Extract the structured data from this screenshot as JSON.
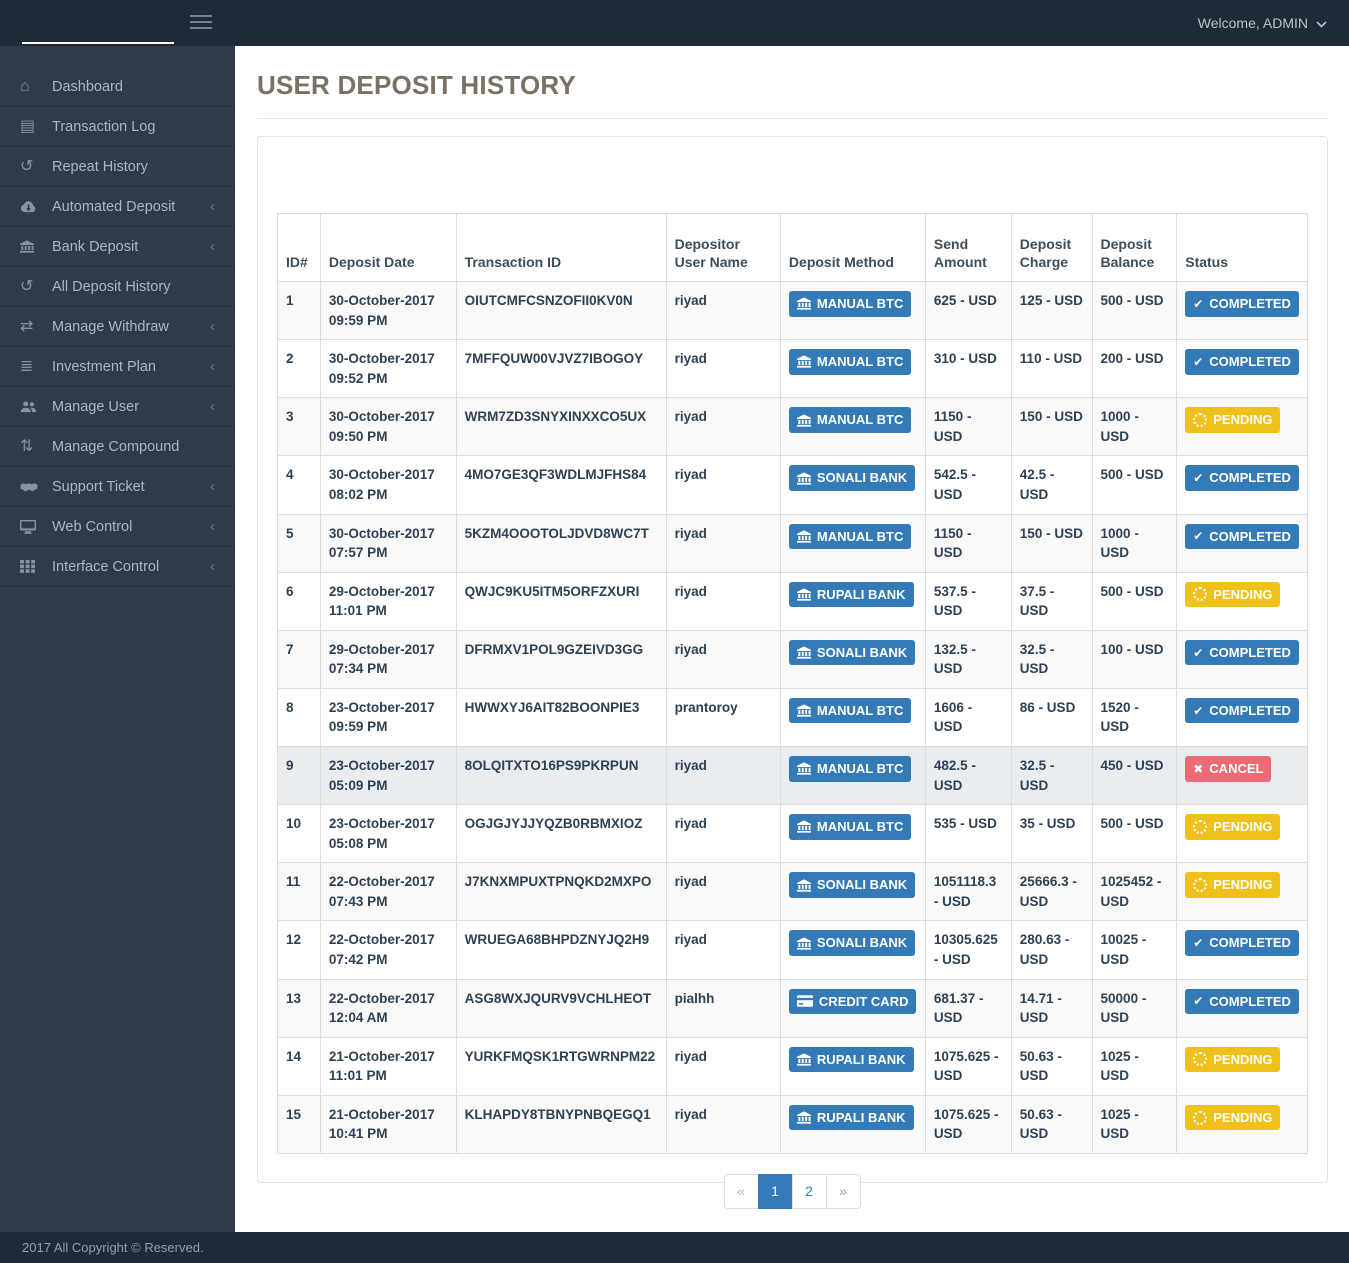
{
  "navbar": {
    "welcome": "Welcome, ADMIN",
    "menu_icon": "hamburger-icon",
    "caret_icon": "chevron-down-icon"
  },
  "sidebar": {
    "items": [
      {
        "label": "Dashboard",
        "icon": "home-icon",
        "submenu": false
      },
      {
        "label": "Transaction Log",
        "icon": "list-alt-icon",
        "submenu": false
      },
      {
        "label": "Repeat History",
        "icon": "history-icon",
        "submenu": false
      },
      {
        "label": "Automated Deposit",
        "icon": "cloud-download-icon",
        "submenu": true
      },
      {
        "label": "Bank Deposit",
        "icon": "bank-icon",
        "submenu": true
      },
      {
        "label": "All Deposit History",
        "icon": "history-icon",
        "submenu": false
      },
      {
        "label": "Manage Withdraw",
        "icon": "exchange-icon",
        "submenu": true
      },
      {
        "label": "Investment Plan",
        "icon": "list-icon",
        "submenu": true
      },
      {
        "label": "Manage User",
        "icon": "users-icon",
        "submenu": true
      },
      {
        "label": "Manage Compound",
        "icon": "sort-icon",
        "submenu": false
      },
      {
        "label": "Support Ticket",
        "icon": "handshake-icon",
        "submenu": true
      },
      {
        "label": "Web Control",
        "icon": "desktop-icon",
        "submenu": true
      },
      {
        "label": "Interface Control",
        "icon": "grid-icon",
        "submenu": true
      }
    ]
  },
  "page": {
    "title": "USER DEPOSIT HISTORY"
  },
  "table": {
    "headers": [
      "ID#",
      "Deposit Date",
      "Transaction ID",
      "Depositor User Name",
      "Deposit Method",
      "Send Amount",
      "Deposit Charge",
      "Deposit Balance",
      "Status"
    ],
    "rows": [
      {
        "id": "1",
        "date": "30-October-2017",
        "time": "09:59 PM",
        "txn": "OIUTCMFCSNZOFII0KV0N",
        "user": "riyad",
        "method": "MANUAL BTC",
        "method_icon": "bank-icon",
        "send": "625 - USD",
        "charge": "125 - USD",
        "balance": "500 - USD",
        "status": "COMPLETED",
        "status_type": "completed",
        "status_icon": "check-icon",
        "highlight": false
      },
      {
        "id": "2",
        "date": "30-October-2017",
        "time": "09:52 PM",
        "txn": "7MFFQUW00VJVZ7IBOGOY",
        "user": "riyad",
        "method": "MANUAL BTC",
        "method_icon": "bank-icon",
        "send": "310 - USD",
        "charge": "110 - USD",
        "balance": "200 - USD",
        "status": "COMPLETED",
        "status_type": "completed",
        "status_icon": "check-icon",
        "highlight": false
      },
      {
        "id": "3",
        "date": "30-October-2017",
        "time": "09:50 PM",
        "txn": "WRM7ZD3SNYXINXXCO5UX",
        "user": "riyad",
        "method": "MANUAL BTC",
        "method_icon": "bank-icon",
        "send": "1150 - USD",
        "charge": "150 - USD",
        "balance": "1000 - USD",
        "status": "PENDING",
        "status_type": "pending",
        "status_icon": "spinner-icon",
        "highlight": false
      },
      {
        "id": "4",
        "date": "30-October-2017",
        "time": "08:02 PM",
        "txn": "4MO7GE3QF3WDLMJFHS84",
        "user": "riyad",
        "method": "SONALI BANK",
        "method_icon": "bank-icon",
        "send": "542.5 - USD",
        "charge": "42.5 - USD",
        "balance": "500 - USD",
        "status": "COMPLETED",
        "status_type": "completed",
        "status_icon": "check-icon",
        "highlight": false
      },
      {
        "id": "5",
        "date": "30-October-2017",
        "time": "07:57 PM",
        "txn": "5KZM4OOOTOLJDVD8WC7T",
        "user": "riyad",
        "method": "MANUAL BTC",
        "method_icon": "bank-icon",
        "send": "1150 - USD",
        "charge": "150 - USD",
        "balance": "1000 - USD",
        "status": "COMPLETED",
        "status_type": "completed",
        "status_icon": "check-icon",
        "highlight": false
      },
      {
        "id": "6",
        "date": "29-October-2017",
        "time": "11:01 PM",
        "txn": "QWJC9KU5ITM5ORFZXURI",
        "user": "riyad",
        "method": "RUPALI BANK",
        "method_icon": "bank-icon",
        "send": "537.5 - USD",
        "charge": "37.5 - USD",
        "balance": "500 - USD",
        "status": "PENDING",
        "status_type": "pending",
        "status_icon": "spinner-icon",
        "highlight": false
      },
      {
        "id": "7",
        "date": "29-October-2017",
        "time": "07:34 PM",
        "txn": "DFRMXV1POL9GZEIVD3GG",
        "user": "riyad",
        "method": "SONALI BANK",
        "method_icon": "bank-icon",
        "send": "132.5 - USD",
        "charge": "32.5 - USD",
        "balance": "100 - USD",
        "status": "COMPLETED",
        "status_type": "completed",
        "status_icon": "check-icon",
        "highlight": false
      },
      {
        "id": "8",
        "date": "23-October-2017",
        "time": "09:59 PM",
        "txn": "HWWXYJ6AIT82BOONPIE3",
        "user": "prantoroy",
        "method": "MANUAL BTC",
        "method_icon": "bank-icon",
        "send": "1606 - USD",
        "charge": "86 - USD",
        "balance": "1520 - USD",
        "status": "COMPLETED",
        "status_type": "completed",
        "status_icon": "check-icon",
        "highlight": false
      },
      {
        "id": "9",
        "date": "23-October-2017",
        "time": "05:09 PM",
        "txn": "8OLQITXTO16PS9PKRPUN",
        "user": "riyad",
        "method": "MANUAL BTC",
        "method_icon": "bank-icon",
        "send": "482.5 - USD",
        "charge": "32.5 - USD",
        "balance": "450 - USD",
        "status": "CANCEL",
        "status_type": "cancel",
        "status_icon": "x-icon",
        "highlight": true
      },
      {
        "id": "10",
        "date": "23-October-2017",
        "time": "05:08 PM",
        "txn": "OGJGJYJJYQZB0RBMXIOZ",
        "user": "riyad",
        "method": "MANUAL BTC",
        "method_icon": "bank-icon",
        "send": "535 - USD",
        "charge": "35 - USD",
        "balance": "500 - USD",
        "status": "PENDING",
        "status_type": "pending",
        "status_icon": "spinner-icon",
        "highlight": false
      },
      {
        "id": "11",
        "date": "22-October-2017",
        "time": "07:43 PM",
        "txn": "J7KNXMPUXTPNQKD2MXPO",
        "user": "riyad",
        "method": "SONALI BANK",
        "method_icon": "bank-icon",
        "send": "1051118.3 - USD",
        "charge": "25666.3 - USD",
        "balance": "1025452 - USD",
        "status": "PENDING",
        "status_type": "pending",
        "status_icon": "spinner-icon",
        "highlight": false
      },
      {
        "id": "12",
        "date": "22-October-2017",
        "time": "07:42 PM",
        "txn": "WRUEGA68BHPDZNYJQ2H9",
        "user": "riyad",
        "method": "SONALI BANK",
        "method_icon": "bank-icon",
        "send": "10305.625 - USD",
        "charge": "280.63 - USD",
        "balance": "10025 - USD",
        "status": "COMPLETED",
        "status_type": "completed",
        "status_icon": "check-icon",
        "highlight": false
      },
      {
        "id": "13",
        "date": "22-October-2017",
        "time": "12:04 AM",
        "txn": "ASG8WXJQURV9VCHLHEOT",
        "user": "pialhh",
        "method": "CREDIT CARD",
        "method_icon": "card-icon",
        "send": "681.37 - USD",
        "charge": "14.71 - USD",
        "balance": "50000 - USD",
        "status": "COMPLETED",
        "status_type": "completed",
        "status_icon": "check-icon",
        "highlight": false
      },
      {
        "id": "14",
        "date": "21-October-2017",
        "time": "11:01 PM",
        "txn": "YURKFMQSK1RTGWRNPM22",
        "user": "riyad",
        "method": "RUPALI BANK",
        "method_icon": "bank-icon",
        "send": "1075.625 - USD",
        "charge": "50.63 - USD",
        "balance": "1025 - USD",
        "status": "PENDING",
        "status_type": "pending",
        "status_icon": "spinner-icon",
        "highlight": false
      },
      {
        "id": "15",
        "date": "21-October-2017",
        "time": "10:41 PM",
        "txn": "KLHAPDY8TBNYPNBQEGQ1",
        "user": "riyad",
        "method": "RUPALI BANK",
        "method_icon": "bank-icon",
        "send": "1075.625 - USD",
        "charge": "50.63 - USD",
        "balance": "1025 - USD",
        "status": "PENDING",
        "status_type": "pending",
        "status_icon": "spinner-icon",
        "highlight": false
      }
    ]
  },
  "pagination": {
    "prev": "«",
    "pages": [
      "1",
      "2"
    ],
    "active": "1",
    "next": "»"
  },
  "footer": {
    "copyright": "2017 All Copyright © Reserved."
  },
  "colors": {
    "primary": "#337ab7",
    "pending": "#f0c11b",
    "cancel": "#ed6b75",
    "topbar": "#1f2a36",
    "sidebar": "#2f3b4a",
    "title": "#7a7164"
  }
}
